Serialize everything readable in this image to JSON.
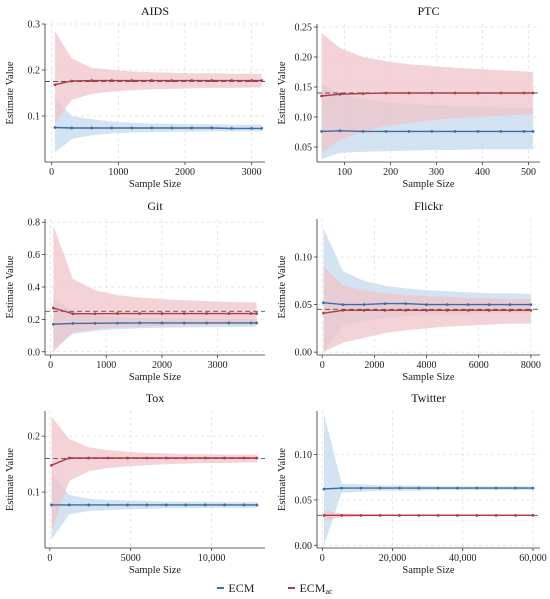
{
  "legend": {
    "ecm_label": "ECM",
    "ecm_ac_base": "ECM",
    "ecm_ac_sub": "ac"
  },
  "colors": {
    "ecm": "#3a6ea5",
    "ecm_band": "#c6d9ec",
    "ecm_ac": "#b03a48",
    "ecm_ac_band": "#efc4c9",
    "reference": "#555555",
    "grid": "#dddddd"
  },
  "chart_data": [
    {
      "type": "line",
      "title": "AIDS",
      "xlabel": "Sample Size",
      "ylabel": "Estimate Value",
      "xlim": [
        -100,
        3200
      ],
      "ylim": [
        0,
        0.3
      ],
      "xticks": [
        0,
        1000,
        2000,
        3000
      ],
      "xtick_labels": [
        "0",
        "1000",
        "2000",
        "3000"
      ],
      "yticks": [
        0.1,
        0.2,
        0.3
      ],
      "ytick_labels": [
        "0.1",
        "0.2",
        "0.3"
      ],
      "reference_value": 0.175,
      "x": [
        50,
        300,
        600,
        900,
        1200,
        1500,
        1800,
        2100,
        2400,
        2700,
        3000,
        3150
      ],
      "series": [
        {
          "name": "ECM",
          "color_key": "ecm",
          "values": [
            0.075,
            0.074,
            0.074,
            0.074,
            0.074,
            0.074,
            0.074,
            0.074,
            0.074,
            0.073,
            0.073,
            0.073
          ],
          "lower": [
            0.02,
            0.05,
            0.058,
            0.062,
            0.064,
            0.065,
            0.066,
            0.066,
            0.067,
            0.067,
            0.067,
            0.067
          ],
          "upper": [
            0.14,
            0.1,
            0.093,
            0.088,
            0.085,
            0.084,
            0.083,
            0.082,
            0.082,
            0.081,
            0.081,
            0.081
          ]
        },
        {
          "name": "ECM_ac",
          "color_key": "ecm_ac",
          "values": [
            0.168,
            0.176,
            0.177,
            0.177,
            0.177,
            0.177,
            0.177,
            0.177,
            0.177,
            0.177,
            0.177,
            0.177
          ],
          "lower": [
            0.085,
            0.135,
            0.148,
            0.153,
            0.156,
            0.158,
            0.159,
            0.16,
            0.161,
            0.161,
            0.162,
            0.162
          ],
          "upper": [
            0.285,
            0.225,
            0.205,
            0.2,
            0.197,
            0.195,
            0.194,
            0.193,
            0.193,
            0.192,
            0.192,
            0.192
          ]
        }
      ]
    },
    {
      "type": "line",
      "title": "PTC",
      "xlabel": "Sample Size",
      "ylabel": "Estimate Value",
      "xlim": [
        40,
        525
      ],
      "ylim": [
        0.025,
        0.255
      ],
      "xticks": [
        100,
        200,
        300,
        400,
        500
      ],
      "xtick_labels": [
        "100",
        "200",
        "300",
        "400",
        "500"
      ],
      "yticks": [
        0.05,
        0.1,
        0.15,
        0.2,
        0.25
      ],
      "ytick_labels": [
        "0.05",
        "0.10",
        "0.15",
        "0.20",
        "0.25"
      ],
      "reference_value": 0.14,
      "x": [
        50,
        90,
        140,
        190,
        240,
        290,
        340,
        390,
        440,
        490,
        510
      ],
      "series": [
        {
          "name": "ECM",
          "color_key": "ecm",
          "values": [
            0.076,
            0.077,
            0.076,
            0.076,
            0.076,
            0.076,
            0.076,
            0.076,
            0.076,
            0.076,
            0.076
          ],
          "lower": [
            0.03,
            0.04,
            0.042,
            0.043,
            0.044,
            0.045,
            0.045,
            0.046,
            0.046,
            0.046,
            0.046
          ],
          "upper": [
            0.155,
            0.14,
            0.13,
            0.125,
            0.122,
            0.12,
            0.118,
            0.117,
            0.116,
            0.115,
            0.115
          ]
        },
        {
          "name": "ECM_ac",
          "color_key": "ecm_ac",
          "values": [
            0.135,
            0.138,
            0.139,
            0.14,
            0.14,
            0.14,
            0.14,
            0.14,
            0.14,
            0.14,
            0.14
          ],
          "lower": [
            0.04,
            0.062,
            0.075,
            0.085,
            0.09,
            0.095,
            0.098,
            0.1,
            0.102,
            0.104,
            0.104
          ],
          "upper": [
            0.24,
            0.215,
            0.2,
            0.193,
            0.188,
            0.185,
            0.182,
            0.18,
            0.178,
            0.176,
            0.175
          ]
        }
      ]
    },
    {
      "type": "line",
      "title": "Git",
      "xlabel": "Sample Size",
      "ylabel": "Estimate Value",
      "xlim": [
        -100,
        3850
      ],
      "ylim": [
        -0.02,
        0.82
      ],
      "xticks": [
        0,
        1000,
        2000,
        3000
      ],
      "xtick_labels": [
        "0",
        "1000",
        "2000",
        "3000"
      ],
      "yticks": [
        0,
        0.2,
        0.4,
        0.6,
        0.8
      ],
      "ytick_labels": [
        "0.0",
        "0.2",
        "0.4",
        "0.6",
        "0.8"
      ],
      "reference_value": 0.25,
      "x": [
        50,
        400,
        800,
        1200,
        1600,
        2000,
        2400,
        2800,
        3200,
        3600,
        3700
      ],
      "series": [
        {
          "name": "ECM",
          "color_key": "ecm",
          "values": [
            0.17,
            0.175,
            0.176,
            0.177,
            0.178,
            0.178,
            0.178,
            0.178,
            0.178,
            0.178,
            0.178
          ],
          "lower": [
            0.02,
            0.11,
            0.13,
            0.14,
            0.145,
            0.148,
            0.15,
            0.152,
            0.153,
            0.154,
            0.154
          ],
          "upper": [
            0.33,
            0.25,
            0.225,
            0.215,
            0.21,
            0.207,
            0.205,
            0.204,
            0.203,
            0.202,
            0.202
          ]
        },
        {
          "name": "ECM_ac",
          "color_key": "ecm_ac",
          "values": [
            0.27,
            0.235,
            0.235,
            0.236,
            0.236,
            0.236,
            0.236,
            0.236,
            0.236,
            0.236,
            0.236
          ],
          "lower": [
            0.0,
            0.12,
            0.14,
            0.15,
            0.155,
            0.16,
            0.163,
            0.165,
            0.167,
            0.168,
            0.168
          ],
          "upper": [
            0.78,
            0.45,
            0.38,
            0.35,
            0.335,
            0.325,
            0.318,
            0.312,
            0.308,
            0.305,
            0.304
          ]
        }
      ]
    },
    {
      "type": "line",
      "title": "Flickr",
      "xlabel": "Sample Size",
      "ylabel": "Estimate Value",
      "xlim": [
        -200,
        8350
      ],
      "ylim": [
        -0.003,
        0.14
      ],
      "xticks": [
        0,
        2000,
        4000,
        6000,
        8000
      ],
      "xtick_labels": [
        "0",
        "2000",
        "4000",
        "6000",
        "8000"
      ],
      "yticks": [
        0,
        0.05,
        0.1
      ],
      "ytick_labels": [
        "0.00",
        "0.05",
        "0.10"
      ],
      "reference_value": 0.045,
      "x": [
        50,
        800,
        1600,
        2400,
        3200,
        4000,
        4800,
        5600,
        6400,
        7200,
        8000
      ],
      "series": [
        {
          "name": "ECM",
          "color_key": "ecm",
          "values": [
            0.052,
            0.05,
            0.05,
            0.051,
            0.051,
            0.05,
            0.05,
            0.05,
            0.05,
            0.05,
            0.05
          ],
          "lower": [
            0.0,
            0.028,
            0.033,
            0.036,
            0.038,
            0.039,
            0.04,
            0.04,
            0.041,
            0.041,
            0.041
          ],
          "upper": [
            0.13,
            0.085,
            0.075,
            0.07,
            0.067,
            0.065,
            0.064,
            0.063,
            0.062,
            0.062,
            0.061
          ]
        },
        {
          "name": "ECM_ac",
          "color_key": "ecm_ac",
          "values": [
            0.041,
            0.044,
            0.044,
            0.044,
            0.044,
            0.044,
            0.044,
            0.044,
            0.044,
            0.044,
            0.044
          ],
          "lower": [
            0.0,
            0.01,
            0.015,
            0.02,
            0.023,
            0.025,
            0.027,
            0.028,
            0.029,
            0.03,
            0.03
          ],
          "upper": [
            0.09,
            0.07,
            0.065,
            0.062,
            0.06,
            0.059,
            0.058,
            0.057,
            0.057,
            0.056,
            0.056
          ]
        }
      ]
    },
    {
      "type": "line",
      "title": "Tox",
      "xlabel": "Sample Size",
      "ylabel": "Estimate Value",
      "xlim": [
        -300,
        13300
      ],
      "ylim": [
        0.0,
        0.245
      ],
      "xticks": [
        0,
        5000,
        10000
      ],
      "xtick_labels": [
        "0",
        "5000",
        "10,000"
      ],
      "yticks": [
        0.1,
        0.2
      ],
      "ytick_labels": [
        "0.1",
        "0.2"
      ],
      "reference_value": 0.16,
      "x": [
        100,
        1200,
        2400,
        3600,
        4800,
        6000,
        7200,
        8400,
        9600,
        10800,
        12000,
        12800
      ],
      "series": [
        {
          "name": "ECM",
          "color_key": "ecm",
          "values": [
            0.077,
            0.077,
            0.077,
            0.077,
            0.077,
            0.077,
            0.077,
            0.077,
            0.077,
            0.077,
            0.077,
            0.077
          ],
          "lower": [
            0.015,
            0.06,
            0.066,
            0.068,
            0.069,
            0.07,
            0.071,
            0.071,
            0.072,
            0.072,
            0.072,
            0.072
          ],
          "upper": [
            0.135,
            0.095,
            0.088,
            0.086,
            0.085,
            0.084,
            0.083,
            0.083,
            0.083,
            0.082,
            0.082,
            0.082
          ]
        },
        {
          "name": "ECM_ac",
          "color_key": "ecm_ac",
          "values": [
            0.148,
            0.161,
            0.161,
            0.161,
            0.161,
            0.161,
            0.161,
            0.161,
            0.161,
            0.161,
            0.161,
            0.161
          ],
          "lower": [
            0.03,
            0.12,
            0.137,
            0.143,
            0.146,
            0.148,
            0.15,
            0.151,
            0.152,
            0.152,
            0.153,
            0.153
          ],
          "upper": [
            0.235,
            0.195,
            0.18,
            0.175,
            0.172,
            0.17,
            0.169,
            0.168,
            0.168,
            0.167,
            0.167,
            0.167
          ]
        }
      ]
    },
    {
      "type": "line",
      "title": "Twitter",
      "xlabel": "Sample Size",
      "ylabel": "Estimate Value",
      "xlim": [
        -1500,
        62000
      ],
      "ylim": [
        -0.003,
        0.148
      ],
      "xticks": [
        0,
        20000,
        40000,
        60000
      ],
      "xtick_labels": [
        "0",
        "20,000",
        "40,000",
        "60,000"
      ],
      "yticks": [
        0,
        0.05,
        0.1
      ],
      "ytick_labels": [
        "0.00",
        "0.05",
        "0.10"
      ],
      "reference_value": 0.033,
      "x": [
        500,
        5500,
        11000,
        16500,
        22000,
        27500,
        33000,
        38500,
        44000,
        49500,
        55000,
        60000
      ],
      "series": [
        {
          "name": "ECM",
          "color_key": "ecm",
          "values": [
            0.062,
            0.063,
            0.063,
            0.063,
            0.063,
            0.063,
            0.063,
            0.063,
            0.063,
            0.063,
            0.063,
            0.063
          ],
          "lower": [
            0.0,
            0.058,
            0.059,
            0.06,
            0.06,
            0.06,
            0.061,
            0.061,
            0.061,
            0.061,
            0.061,
            0.061
          ],
          "upper": [
            0.145,
            0.068,
            0.067,
            0.066,
            0.066,
            0.066,
            0.065,
            0.065,
            0.065,
            0.065,
            0.065,
            0.065
          ]
        },
        {
          "name": "ECM_ac",
          "color_key": "ecm_ac",
          "values": [
            0.033,
            0.033,
            0.033,
            0.033,
            0.033,
            0.033,
            0.033,
            0.033,
            0.033,
            0.033,
            0.033,
            0.033
          ],
          "lower": [
            0.027,
            0.031,
            0.0315,
            0.032,
            0.032,
            0.032,
            0.032,
            0.032,
            0.032,
            0.032,
            0.032,
            0.032
          ],
          "upper": [
            0.038,
            0.035,
            0.0345,
            0.034,
            0.034,
            0.034,
            0.034,
            0.034,
            0.034,
            0.034,
            0.034,
            0.034
          ]
        }
      ]
    }
  ]
}
